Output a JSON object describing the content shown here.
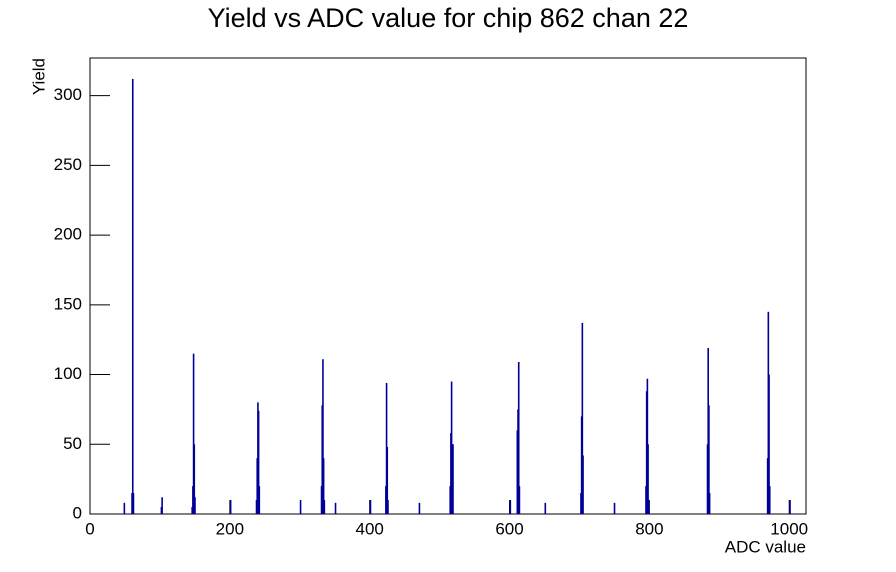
{
  "chart_data": {
    "type": "spikes",
    "title": "Yield vs ADC value for chip 862 chan 22",
    "x_label": "ADC value",
    "y_label": "Yield",
    "color": "#000099",
    "xlim": [
      0,
      1024
    ],
    "ylim": [
      0,
      327
    ],
    "xticks": [
      0,
      200,
      400,
      600,
      800,
      1000
    ],
    "yticks": [
      0,
      50,
      100,
      150,
      200,
      250,
      300
    ],
    "x": [
      48,
      59,
      60,
      61,
      101,
      102,
      145,
      146,
      147,
      148,
      149,
      200,
      237,
      238,
      239,
      240,
      241,
      300,
      330,
      331,
      332,
      333,
      334,
      350,
      400,
      422,
      423,
      424,
      425,
      470,
      514,
      515,
      516,
      517,
      518,
      600,
      610,
      611,
      612,
      613,
      650,
      701,
      702,
      703,
      704,
      749,
      794,
      795,
      796,
      797,
      798,
      882,
      883,
      884,
      885,
      968,
      969,
      970,
      971,
      1000
    ],
    "values": [
      8,
      15,
      312,
      15,
      5,
      12,
      5,
      20,
      115,
      50,
      12,
      10,
      10,
      40,
      80,
      74,
      20,
      10,
      20,
      78,
      111,
      40,
      10,
      8,
      10,
      20,
      94,
      48,
      10,
      8,
      20,
      58,
      95,
      50,
      50,
      10,
      60,
      75,
      109,
      20,
      8,
      15,
      70,
      137,
      42,
      8,
      20,
      88,
      97,
      50,
      10,
      50,
      119,
      78,
      15,
      40,
      145,
      100,
      20,
      10
    ]
  }
}
